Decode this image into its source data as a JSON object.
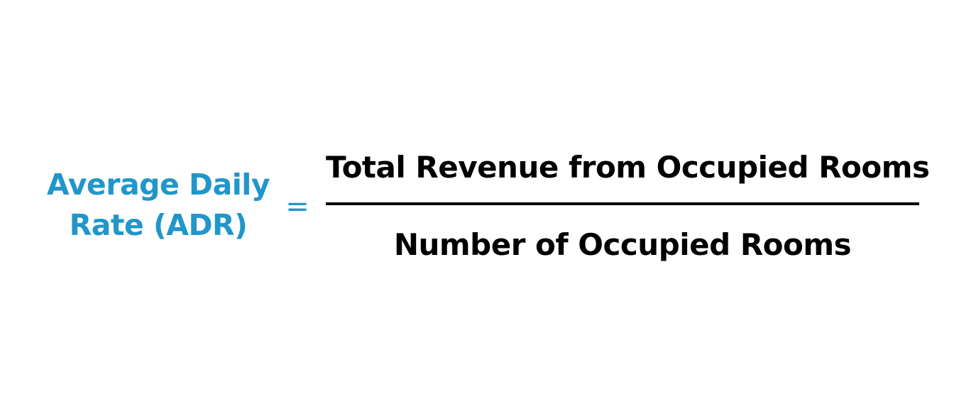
{
  "formula": {
    "lhs_line1": "Average Daily",
    "lhs_line2": "Rate (ADR)",
    "equals": "=",
    "numerator": "Total Revenue from Occupied Rooms",
    "denominator": "Number of Occupied Rooms"
  },
  "colors": {
    "accent": "#2196C9",
    "text": "#000000",
    "background": "#ffffff"
  }
}
